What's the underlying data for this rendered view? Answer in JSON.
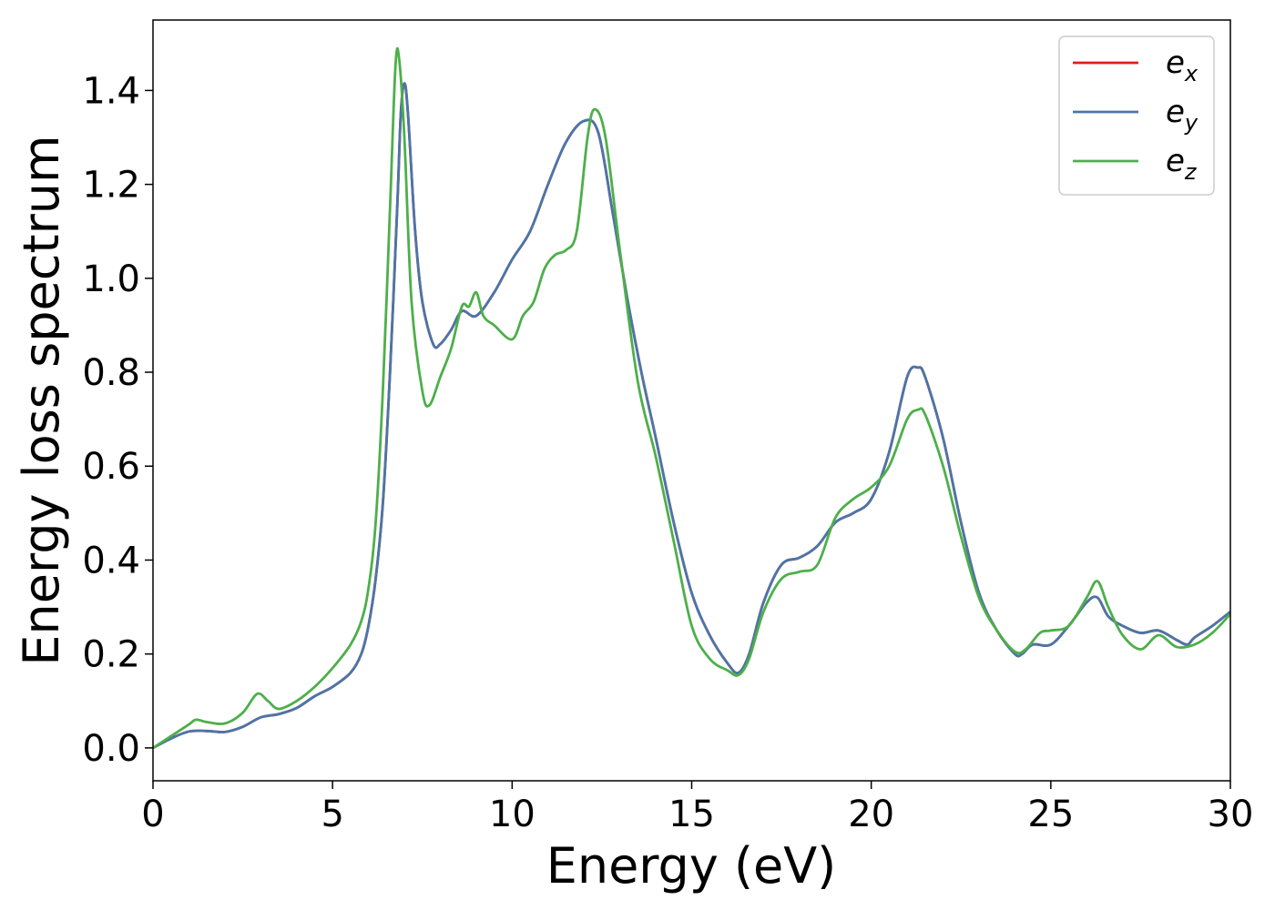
{
  "chart_data": {
    "type": "line",
    "xlabel": "Energy (eV)",
    "ylabel": "Energy loss spectrum",
    "xlim": [
      0,
      30
    ],
    "ylim": [
      -0.07,
      1.55
    ],
    "x_ticks": [
      0,
      5,
      10,
      15,
      20,
      25,
      30
    ],
    "y_ticks": [
      0.0,
      0.2,
      0.4,
      0.6,
      0.8,
      1.0,
      1.2,
      1.4
    ],
    "x_tick_labels": [
      "0",
      "5",
      "10",
      "15",
      "20",
      "25",
      "30"
    ],
    "y_tick_labels": [
      "0.0",
      "0.2",
      "0.4",
      "0.6",
      "0.8",
      "1.0",
      "1.2",
      "1.4"
    ],
    "grid": false,
    "legend_position": "top-right",
    "series": [
      {
        "name": "e",
        "subscript": "x",
        "color": "#e41a1c",
        "x": [
          0,
          0.5,
          1,
          1.5,
          2,
          2.5,
          3,
          3.5,
          4,
          4.5,
          5,
          5.5,
          5.8,
          6,
          6.2,
          6.4,
          6.6,
          6.8,
          6.9,
          7,
          7.1,
          7.3,
          7.5,
          7.8,
          8,
          8.3,
          8.6,
          9,
          9.5,
          10,
          10.5,
          11,
          11.5,
          12,
          12.4,
          12.8,
          13.2,
          13.6,
          14,
          14.5,
          15,
          15.5,
          16,
          16.3,
          16.6,
          17,
          17.5,
          18,
          18.5,
          19,
          19.5,
          20,
          20.5,
          21,
          21.3,
          21.5,
          22,
          22.5,
          23,
          23.5,
          24,
          24.2,
          24.5,
          25,
          25.5,
          26,
          26.3,
          26.6,
          27,
          27.5,
          28,
          28.5,
          28.8,
          29,
          29.5,
          30
        ],
        "y": [
          0,
          0.02,
          0.035,
          0.036,
          0.034,
          0.045,
          0.065,
          0.072,
          0.085,
          0.11,
          0.13,
          0.16,
          0.2,
          0.26,
          0.36,
          0.52,
          0.8,
          1.15,
          1.35,
          1.415,
          1.35,
          1.1,
          0.95,
          0.86,
          0.86,
          0.89,
          0.93,
          0.92,
          0.97,
          1.04,
          1.1,
          1.2,
          1.29,
          1.335,
          1.31,
          1.14,
          0.96,
          0.8,
          0.66,
          0.48,
          0.33,
          0.24,
          0.18,
          0.16,
          0.2,
          0.31,
          0.39,
          0.405,
          0.43,
          0.48,
          0.5,
          0.53,
          0.63,
          0.79,
          0.81,
          0.79,
          0.66,
          0.48,
          0.33,
          0.25,
          0.2,
          0.2,
          0.22,
          0.22,
          0.26,
          0.31,
          0.32,
          0.28,
          0.26,
          0.245,
          0.25,
          0.23,
          0.22,
          0.235,
          0.26,
          0.29
        ]
      },
      {
        "name": "e",
        "subscript": "y",
        "color": "#4a76a8",
        "x": [
          0,
          0.5,
          1,
          1.5,
          2,
          2.5,
          3,
          3.5,
          4,
          4.5,
          5,
          5.5,
          5.8,
          6,
          6.2,
          6.4,
          6.6,
          6.8,
          6.9,
          7,
          7.1,
          7.3,
          7.5,
          7.8,
          8,
          8.3,
          8.6,
          9,
          9.5,
          10,
          10.5,
          11,
          11.5,
          12,
          12.4,
          12.8,
          13.2,
          13.6,
          14,
          14.5,
          15,
          15.5,
          16,
          16.3,
          16.6,
          17,
          17.5,
          18,
          18.5,
          19,
          19.5,
          20,
          20.5,
          21,
          21.3,
          21.5,
          22,
          22.5,
          23,
          23.5,
          24,
          24.2,
          24.5,
          25,
          25.5,
          26,
          26.3,
          26.6,
          27,
          27.5,
          28,
          28.5,
          28.8,
          29,
          29.5,
          30
        ],
        "y": [
          0,
          0.02,
          0.035,
          0.036,
          0.034,
          0.045,
          0.065,
          0.072,
          0.085,
          0.11,
          0.13,
          0.16,
          0.2,
          0.26,
          0.36,
          0.52,
          0.8,
          1.15,
          1.35,
          1.415,
          1.35,
          1.1,
          0.95,
          0.86,
          0.86,
          0.89,
          0.93,
          0.92,
          0.97,
          1.04,
          1.1,
          1.2,
          1.29,
          1.335,
          1.31,
          1.14,
          0.96,
          0.8,
          0.66,
          0.48,
          0.33,
          0.24,
          0.18,
          0.16,
          0.2,
          0.31,
          0.39,
          0.405,
          0.43,
          0.48,
          0.5,
          0.53,
          0.63,
          0.79,
          0.81,
          0.79,
          0.66,
          0.48,
          0.33,
          0.25,
          0.2,
          0.2,
          0.22,
          0.22,
          0.26,
          0.31,
          0.32,
          0.28,
          0.26,
          0.245,
          0.25,
          0.23,
          0.22,
          0.235,
          0.26,
          0.29
        ]
      },
      {
        "name": "e",
        "subscript": "z",
        "color": "#4daf4a",
        "x": [
          0,
          0.5,
          1,
          1.2,
          1.5,
          2,
          2.5,
          2.9,
          3.2,
          3.5,
          4,
          4.5,
          5,
          5.5,
          5.8,
          6,
          6.2,
          6.4,
          6.6,
          6.75,
          6.85,
          7,
          7.2,
          7.5,
          7.7,
          8,
          8.3,
          8.6,
          8.8,
          9,
          9.2,
          9.5,
          10,
          10.3,
          10.6,
          10.9,
          11.2,
          11.5,
          11.8,
          12.1,
          12.3,
          12.6,
          13,
          13.5,
          14,
          14.5,
          15,
          15.5,
          16,
          16.3,
          16.6,
          17,
          17.5,
          18,
          18.5,
          19,
          19.5,
          20,
          20.5,
          21,
          21.3,
          21.5,
          22,
          22.5,
          23,
          23.5,
          24,
          24.3,
          24.7,
          25,
          25.5,
          26,
          26.3,
          26.6,
          27,
          27.5,
          28,
          28.5,
          29,
          29.5,
          30
        ],
        "y": [
          0,
          0.025,
          0.05,
          0.06,
          0.055,
          0.052,
          0.075,
          0.115,
          0.1,
          0.083,
          0.1,
          0.13,
          0.17,
          0.22,
          0.27,
          0.34,
          0.48,
          0.76,
          1.15,
          1.45,
          1.47,
          1.3,
          0.95,
          0.76,
          0.73,
          0.79,
          0.85,
          0.94,
          0.94,
          0.97,
          0.92,
          0.9,
          0.87,
          0.92,
          0.95,
          1.02,
          1.05,
          1.06,
          1.1,
          1.3,
          1.36,
          1.3,
          1.06,
          0.78,
          0.62,
          0.44,
          0.26,
          0.19,
          0.165,
          0.155,
          0.19,
          0.29,
          0.36,
          0.375,
          0.39,
          0.49,
          0.53,
          0.555,
          0.6,
          0.7,
          0.72,
          0.71,
          0.6,
          0.45,
          0.32,
          0.25,
          0.205,
          0.21,
          0.245,
          0.25,
          0.26,
          0.32,
          0.355,
          0.3,
          0.24,
          0.21,
          0.24,
          0.215,
          0.22,
          0.245,
          0.285
        ]
      }
    ]
  }
}
